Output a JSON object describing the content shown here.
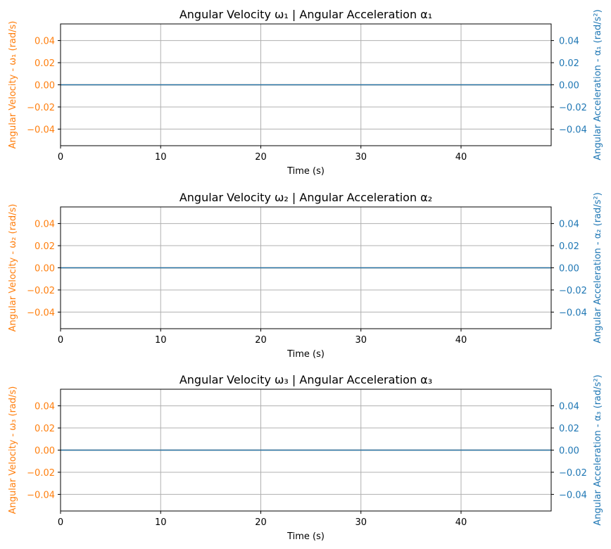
{
  "colors": {
    "left_axis": "#ff7f0e",
    "right_axis": "#1f77b4",
    "grid": "#b0b0b0",
    "frame": "#000000"
  },
  "chart_data": [
    {
      "type": "line",
      "title": "Angular Velocity ω₁ | Angular Acceleration α₁",
      "xlabel": "Time (s)",
      "ylabel_left": "Angular Velocity - ω₁ (rad/s)",
      "ylabel_right": "Angular Acceleration - α₁ (rad/s²)",
      "xlim": [
        0,
        49
      ],
      "ylim_left": [
        -0.055,
        0.055
      ],
      "ylim_right": [
        -0.055,
        0.055
      ],
      "x_ticks": [
        0,
        10,
        20,
        30,
        40
      ],
      "x_tick_labels": [
        "0",
        "10",
        "20",
        "30",
        "40"
      ],
      "y_ticks": [
        0.04,
        0.02,
        0.0,
        -0.02,
        -0.04
      ],
      "y_tick_labels_left": [
        "0.04",
        "0.02",
        "0.00",
        "−0.02",
        "−0.04"
      ],
      "y_tick_labels_right": [
        "0.04",
        "0.02",
        "0.00",
        "−0.02",
        "−0.04"
      ],
      "grid": true,
      "series": [
        {
          "axis": "left",
          "color": "#ff7f0e",
          "x": [
            0,
            49
          ],
          "y": [
            0,
            0
          ]
        },
        {
          "axis": "right",
          "color": "#1f77b4",
          "x": [
            0,
            49
          ],
          "y": [
            0,
            0
          ]
        }
      ]
    },
    {
      "type": "line",
      "title": "Angular Velocity ω₂ | Angular Acceleration α₂",
      "xlabel": "Time (s)",
      "ylabel_left": "Angular Velocity - ω₂ (rad/s)",
      "ylabel_right": "Angular Acceleration - α₂ (rad/s²)",
      "xlim": [
        0,
        49
      ],
      "ylim_left": [
        -0.055,
        0.055
      ],
      "ylim_right": [
        -0.055,
        0.055
      ],
      "x_ticks": [
        0,
        10,
        20,
        30,
        40
      ],
      "x_tick_labels": [
        "0",
        "10",
        "20",
        "30",
        "40"
      ],
      "y_ticks": [
        0.04,
        0.02,
        0.0,
        -0.02,
        -0.04
      ],
      "y_tick_labels_left": [
        "0.04",
        "0.02",
        "0.00",
        "−0.02",
        "−0.04"
      ],
      "y_tick_labels_right": [
        "0.04",
        "0.02",
        "0.00",
        "−0.02",
        "−0.04"
      ],
      "grid": true,
      "series": [
        {
          "axis": "left",
          "color": "#ff7f0e",
          "x": [
            0,
            49
          ],
          "y": [
            0,
            0
          ]
        },
        {
          "axis": "right",
          "color": "#1f77b4",
          "x": [
            0,
            49
          ],
          "y": [
            0,
            0
          ]
        }
      ]
    },
    {
      "type": "line",
      "title": "Angular Velocity ω₃ | Angular Acceleration α₃",
      "xlabel": "Time (s)",
      "ylabel_left": "Angular Velocity - ω₃ (rad/s)",
      "ylabel_right": "Angular Acceleration - α₃ (rad/s²)",
      "xlim": [
        0,
        49
      ],
      "ylim_left": [
        -0.055,
        0.055
      ],
      "ylim_right": [
        -0.055,
        0.055
      ],
      "x_ticks": [
        0,
        10,
        20,
        30,
        40
      ],
      "x_tick_labels": [
        "0",
        "10",
        "20",
        "30",
        "40"
      ],
      "y_ticks": [
        0.04,
        0.02,
        0.0,
        -0.02,
        -0.04
      ],
      "y_tick_labels_left": [
        "0.04",
        "0.02",
        "0.00",
        "−0.02",
        "−0.04"
      ],
      "y_tick_labels_right": [
        "0.04",
        "0.02",
        "0.00",
        "−0.02",
        "−0.04"
      ],
      "grid": true,
      "series": [
        {
          "axis": "left",
          "color": "#ff7f0e",
          "x": [
            0,
            49
          ],
          "y": [
            0,
            0
          ]
        },
        {
          "axis": "right",
          "color": "#1f77b4",
          "x": [
            0,
            49
          ],
          "y": [
            0,
            0
          ]
        }
      ]
    }
  ]
}
